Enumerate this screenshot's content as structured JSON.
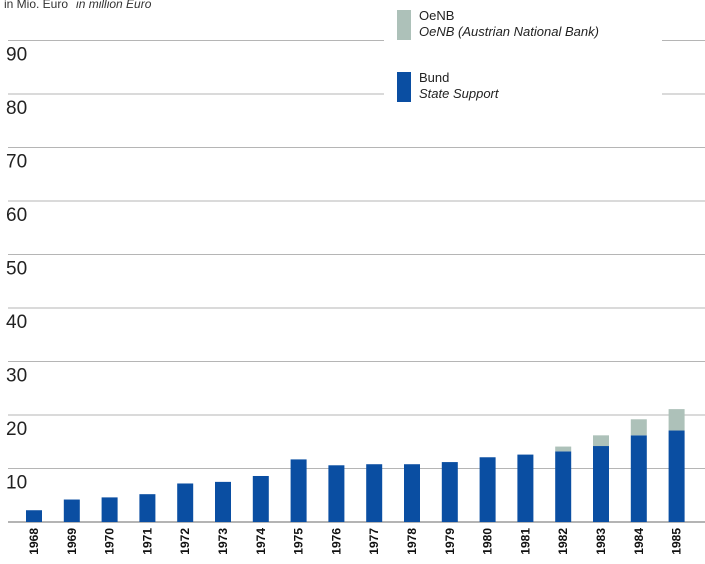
{
  "chart_data": {
    "type": "bar",
    "stacked": true,
    "ylabel": "in Mio. Euro",
    "ylabel_en": "in million Euro",
    "ylim": [
      0,
      100
    ],
    "yticks": [
      10,
      20,
      30,
      40,
      50,
      60,
      70,
      80,
      90
    ],
    "grid": true,
    "legend_position": "top-right",
    "categories": [
      "1968",
      "1969",
      "1970",
      "1971",
      "1972",
      "1973",
      "1974",
      "1975",
      "1976",
      "1977",
      "1978",
      "1979",
      "1980",
      "1981",
      "1982",
      "1983",
      "1984",
      "1985"
    ],
    "series": [
      {
        "name": "Bund",
        "name_en": "State Support",
        "color": "#0a4ea2",
        "values": [
          2.2,
          4.2,
          4.6,
          5.2,
          7.2,
          7.5,
          8.6,
          11.7,
          10.6,
          10.8,
          10.8,
          11.2,
          12.1,
          12.6,
          13.2,
          14.2,
          16.2,
          17.1
        ]
      },
      {
        "name": "OeNB",
        "name_en": "OeNB (Austrian National Bank)",
        "color": "#adc1b9",
        "values": [
          0,
          0,
          0,
          0,
          0,
          0,
          0,
          0,
          0,
          0,
          0,
          0,
          0,
          0,
          0.9,
          2.0,
          3.0,
          4.0
        ]
      }
    ]
  }
}
